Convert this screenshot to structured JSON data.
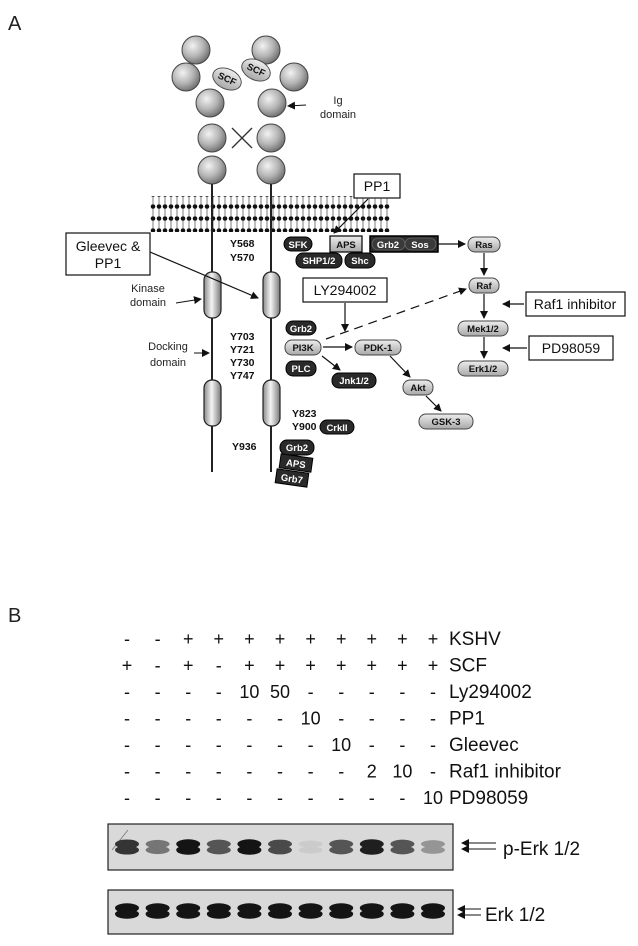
{
  "panel_a": {
    "letter": "A",
    "scf_labels": [
      "SCF",
      "SCF"
    ],
    "ig_label": [
      "Ig",
      "domain"
    ],
    "kinase_label": [
      "Kinase",
      "domain"
    ],
    "docking_label": [
      "Docking",
      "domain"
    ],
    "residues": {
      "y568": "Y568",
      "y570": "Y570",
      "y703": "Y703",
      "y721": "Y721",
      "y730": "Y730",
      "y747": "Y747",
      "y823": "Y823",
      "y900": "Y900",
      "y936": "Y936"
    },
    "molecules": {
      "sfk": "SFK",
      "aps": "APS",
      "grb2": "Grb2",
      "sos": "Sos",
      "shp": "SHP1/2",
      "shc": "Shc",
      "ras": "Ras",
      "raf": "Raf",
      "mek": "Mek1/2",
      "erk": "Erk1/2",
      "grb2b": "Grb2",
      "pi3k": "PI3K",
      "pdk1": "PDK-1",
      "plc": "PLC",
      "jnk": "Jnk1/2",
      "akt": "Akt",
      "gsk3": "GSK-3",
      "crkii": "CrkII",
      "grb2c": "Grb2",
      "aps2": "APS",
      "grb7": "Grb7"
    },
    "inhibitors": {
      "pp1": "PP1",
      "gleevec": [
        "Gleevec &",
        "PP1"
      ],
      "ly": "LY294002",
      "raf1": "Raf1 inhibitor",
      "pd": "PD98059"
    }
  },
  "panel_b": {
    "letter": "B",
    "rows": [
      {
        "label": "KSHV",
        "values": [
          "-",
          "-",
          "+",
          "+",
          "+",
          "+",
          "+",
          "+",
          "+",
          "+",
          "+"
        ]
      },
      {
        "label": "SCF",
        "values": [
          "+",
          "-",
          "+",
          "-",
          "+",
          "+",
          "+",
          "+",
          "+",
          "+",
          "+"
        ]
      },
      {
        "label": "Ly294002",
        "values": [
          "-",
          "-",
          "-",
          "-",
          "10",
          "50",
          "-",
          "-",
          "-",
          "-",
          "-"
        ]
      },
      {
        "label": "PP1",
        "values": [
          "-",
          "-",
          "-",
          "-",
          "-",
          "-",
          "10",
          "-",
          "-",
          "-",
          "-"
        ]
      },
      {
        "label": "Gleevec",
        "values": [
          "-",
          "-",
          "-",
          "-",
          "-",
          "-",
          "-",
          "10",
          "-",
          "-",
          "-"
        ]
      },
      {
        "label": "Raf1 inhibitor",
        "values": [
          "-",
          "-",
          "-",
          "-",
          "-",
          "-",
          "-",
          "-",
          "2",
          "10",
          "-"
        ]
      },
      {
        "label": "PD98059",
        "values": [
          "-",
          "-",
          "-",
          "-",
          "-",
          "-",
          "-",
          "-",
          "-",
          "-",
          "10"
        ]
      }
    ],
    "blots": [
      {
        "label": "p-Erk 1/2",
        "band_intensity": [
          0.85,
          0.55,
          1.0,
          0.7,
          1.0,
          0.75,
          0.15,
          0.7,
          0.95,
          0.7,
          0.4
        ]
      },
      {
        "label": "Erk 1/2",
        "band_intensity": [
          1,
          1,
          1,
          1,
          1,
          1,
          1,
          1,
          1,
          1,
          1
        ]
      }
    ]
  }
}
